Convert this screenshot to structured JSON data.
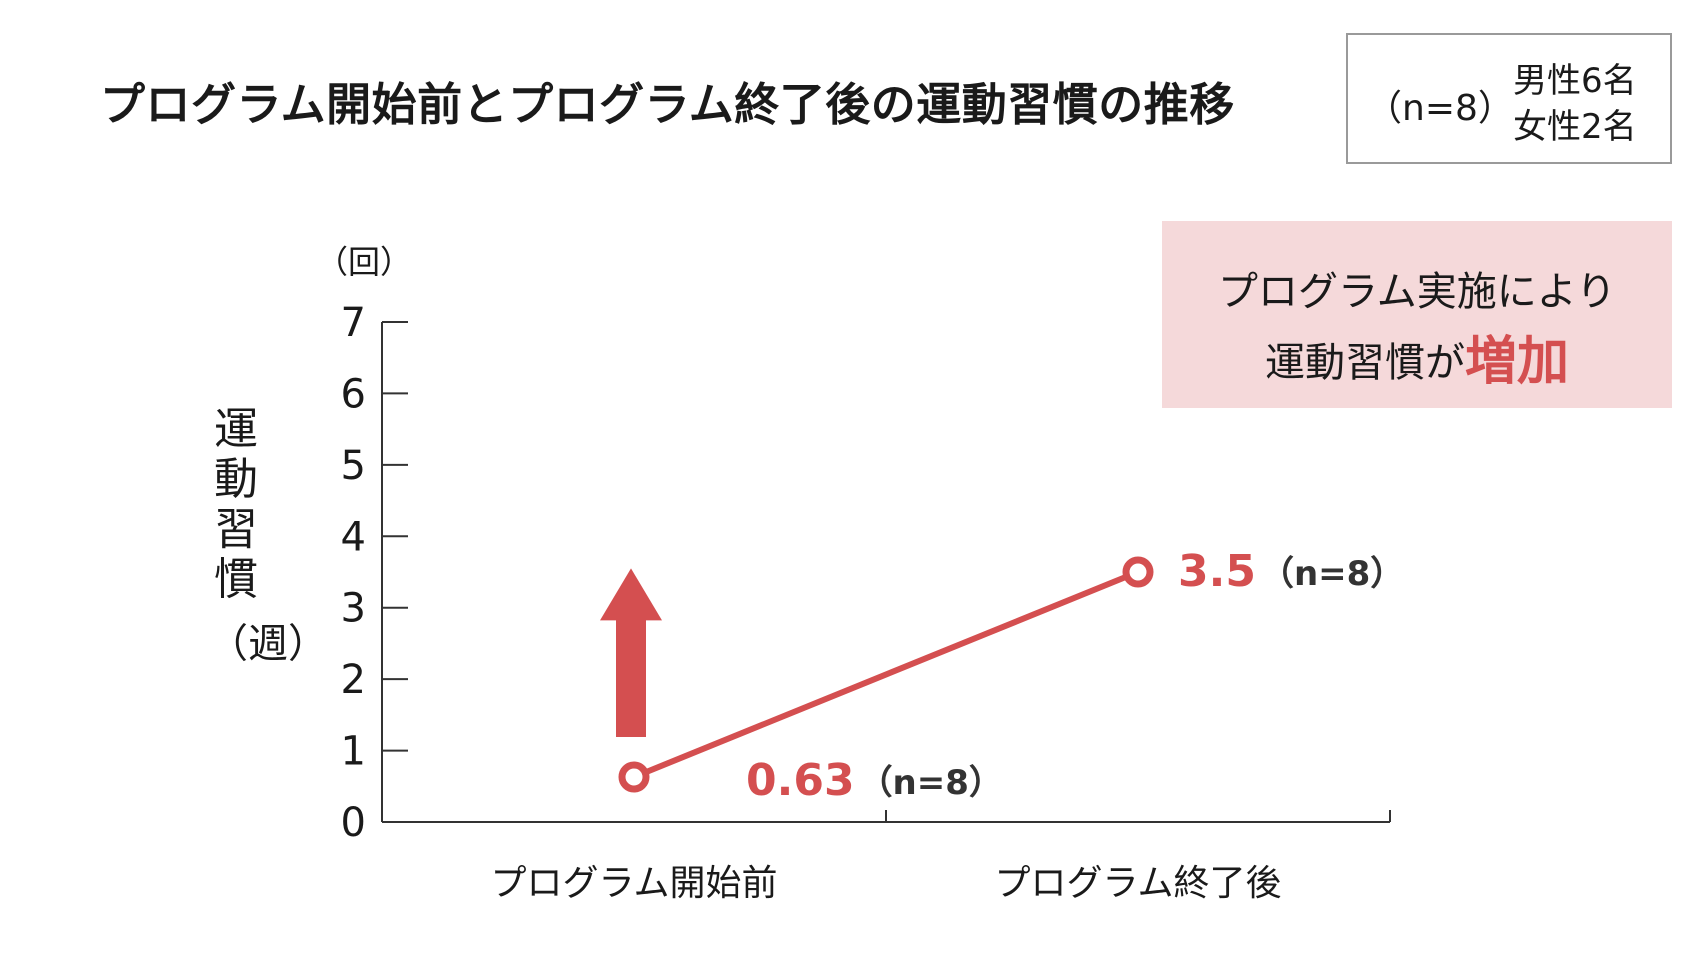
{
  "title": "プログラム開始前とプログラム終了後の運動習慣の推移",
  "sample": {
    "n": "（n=8）",
    "male": "男性6名",
    "female": "女性2名"
  },
  "callout": {
    "line1": "プログラム実施により",
    "line2_prefix": "運動習慣が",
    "line2_emphasis": "増加"
  },
  "colors": {
    "accent": "#d44f50",
    "callout_bg": "#f5d9da",
    "axis": "#333333"
  },
  "chart_data": {
    "type": "line",
    "categories": [
      "プログラム開始前",
      "プログラム終了後"
    ],
    "series": [
      {
        "values": [
          0.63,
          3.5
        ],
        "value_labels": [
          "0.63",
          "3.5"
        ],
        "n_labels": [
          "（n=8）",
          "（n=8）"
        ]
      }
    ],
    "y_unit": "（回）",
    "ylabel_chars": [
      "運",
      "動",
      "習",
      "慣"
    ],
    "ylabel_paren": "（週）",
    "ylim": [
      0,
      7
    ],
    "yticks": [
      0,
      1,
      2,
      3,
      4,
      5,
      6,
      7
    ],
    "grid": false,
    "annotation": "up-arrow"
  }
}
